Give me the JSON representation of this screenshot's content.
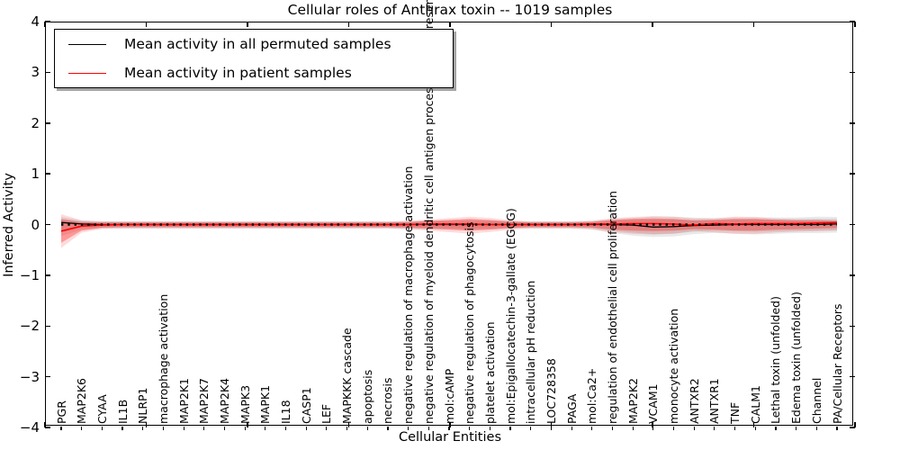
{
  "title": "Cellular roles of Anthrax toxin -- 1019 samples",
  "axes": {
    "xlabel": "Cellular Entities",
    "ylabel": "Inferred Activity"
  },
  "legend": {
    "items": [
      {
        "label": "Mean activity in all permuted samples",
        "color": "#000000"
      },
      {
        "label": "Mean activity in patient samples",
        "color": "#ff0000"
      }
    ]
  },
  "chart_data": {
    "type": "line",
    "title": "Cellular roles of Anthrax toxin -- 1019 samples",
    "xlabel": "Cellular Entities",
    "ylabel": "Inferred Activity",
    "ylim": [
      -4,
      4
    ],
    "yticks": [
      4,
      3,
      2,
      1,
      0,
      -1,
      -2,
      -3,
      -4
    ],
    "grid": false,
    "legend_position": "upper left",
    "categories": [
      "PGR",
      "MAP2K6",
      "CYAA",
      "IL1B",
      "NLRP1",
      "macrophage activation",
      "MAP2K1",
      "MAP2K7",
      "MAP2K4",
      "MAPK3",
      "MAPK1",
      "IL18",
      "CASP1",
      "LEF",
      "MAPKKK cascade",
      "apoptosis",
      "necrosis",
      "negative regulation of macrophage activation",
      "negative regulation of myeloid dendritic cell antigen processing and presentation",
      "mol:cAMP",
      "negative regulation of phagocytosis",
      "platelet activation",
      "mol:Epigallocatechin-3-gallate (EGCG)",
      "intracellular pH reduction",
      "LOC728358",
      "PAGA",
      "mol:Ca2+",
      "regulation of endothelial cell proliferation",
      "MAP2K2",
      "VCAM1",
      "monocyte activation",
      "ANTXR2",
      "ANTXR1",
      "TNF",
      "CALM1",
      "Lethal toxin (unfolded)",
      "Edema toxin (unfolded)",
      "Channel",
      "PA/Cellular Receptors"
    ],
    "series": [
      {
        "name": "Mean activity in all permuted samples",
        "color": "#000000",
        "band_color": "#888888",
        "line_style": "solid-with-dashed-overlay",
        "values": [
          0.04,
          0.01,
          0,
          0,
          0,
          0,
          0,
          0,
          0,
          0,
          0,
          0,
          0,
          0,
          0,
          0,
          0,
          0,
          0,
          0,
          0,
          0,
          0,
          0,
          0,
          0,
          0,
          0,
          -0.01,
          -0.05,
          -0.04,
          -0.02,
          -0.01,
          0,
          0,
          0,
          0,
          0,
          0.01
        ],
        "band_upper": [
          0.12,
          0.06,
          0.05,
          0.05,
          0.05,
          0.05,
          0.05,
          0.05,
          0.05,
          0.05,
          0.05,
          0.05,
          0.05,
          0.05,
          0.05,
          0.05,
          0.05,
          0.05,
          0.06,
          0.06,
          0.07,
          0.06,
          0.05,
          0.05,
          0.05,
          0.05,
          0.06,
          0.08,
          0.09,
          0.1,
          0.1,
          0.09,
          0.09,
          0.1,
          0.1,
          0.1,
          0.1,
          0.11,
          0.11
        ],
        "band_lower": [
          -0.15,
          -0.07,
          -0.06,
          -0.06,
          -0.06,
          -0.06,
          -0.06,
          -0.06,
          -0.06,
          -0.06,
          -0.06,
          -0.06,
          -0.06,
          -0.06,
          -0.06,
          -0.06,
          -0.06,
          -0.07,
          -0.07,
          -0.07,
          -0.08,
          -0.07,
          -0.06,
          -0.06,
          -0.06,
          -0.06,
          -0.07,
          -0.12,
          -0.16,
          -0.19,
          -0.18,
          -0.14,
          -0.12,
          -0.13,
          -0.14,
          -0.13,
          -0.12,
          -0.12,
          -0.11
        ]
      },
      {
        "name": "Mean activity in patient samples",
        "color": "#ff0000",
        "band_color": "#ff0000",
        "line_style": "solid",
        "values": [
          -0.13,
          -0.03,
          -0.01,
          0,
          0,
          0,
          0,
          0,
          0,
          0,
          0,
          0,
          0,
          0,
          0,
          0,
          0,
          0,
          0.01,
          0.01,
          0.01,
          0,
          0,
          0,
          0,
          0,
          0.01,
          0.01,
          0.02,
          0.02,
          0.01,
          -0.01,
          0.02,
          0.01,
          0.02,
          0.02,
          0.02,
          0.03,
          0.04
        ],
        "band_upper": [
          0.1,
          0.05,
          0.04,
          0.04,
          0.04,
          0.04,
          0.04,
          0.04,
          0.04,
          0.04,
          0.04,
          0.04,
          0.04,
          0.04,
          0.04,
          0.04,
          0.04,
          0.05,
          0.07,
          0.09,
          0.11,
          0.09,
          0.06,
          0.04,
          0.04,
          0.04,
          0.05,
          0.09,
          0.11,
          0.12,
          0.11,
          0.08,
          0.09,
          0.11,
          0.11,
          0.09,
          0.08,
          0.08,
          0.07
        ],
        "band_lower": [
          -0.36,
          -0.12,
          -0.06,
          -0.05,
          -0.05,
          -0.05,
          -0.05,
          -0.05,
          -0.05,
          -0.05,
          -0.05,
          -0.05,
          -0.05,
          -0.05,
          -0.05,
          -0.05,
          -0.05,
          -0.06,
          -0.08,
          -0.1,
          -0.12,
          -0.1,
          -0.07,
          -0.05,
          -0.05,
          -0.05,
          -0.06,
          -0.1,
          -0.12,
          -0.13,
          -0.12,
          -0.09,
          -0.1,
          -0.12,
          -0.12,
          -0.1,
          -0.09,
          -0.08,
          -0.07
        ]
      }
    ]
  }
}
